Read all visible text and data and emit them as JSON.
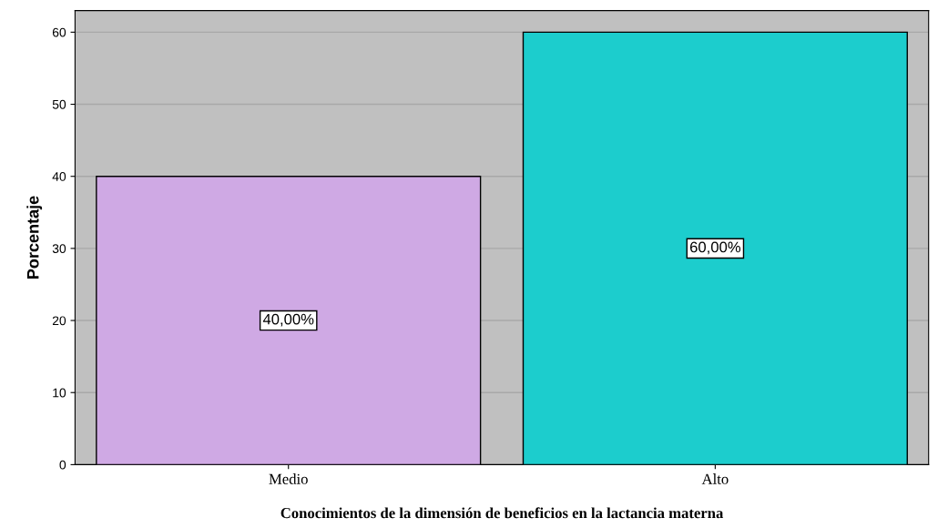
{
  "chart_data": {
    "type": "bar",
    "xlabel": "Conocimientos de la dimensión de beneficios en la lactancia materna",
    "ylabel": "Porcentaje",
    "categories": [
      "Medio",
      "Alto"
    ],
    "values": [
      40,
      60
    ],
    "colors": [
      "#cfa9e4",
      "#1ccdcd"
    ],
    "value_labels": [
      "40,00%",
      "60,00%"
    ],
    "ylim": [
      0,
      63
    ],
    "yticks": [
      0,
      10,
      20,
      30,
      40,
      50,
      60
    ],
    "grid": "y"
  }
}
